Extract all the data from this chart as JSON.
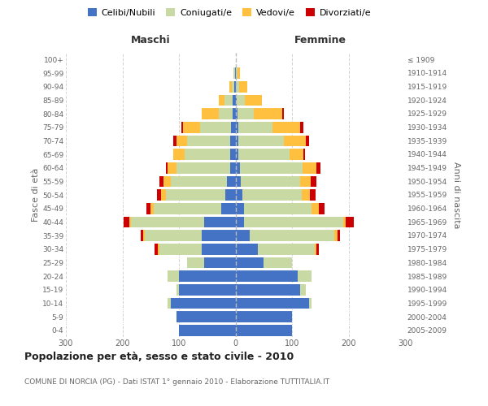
{
  "age_groups": [
    "0-4",
    "5-9",
    "10-14",
    "15-19",
    "20-24",
    "25-29",
    "30-34",
    "35-39",
    "40-44",
    "45-49",
    "50-54",
    "55-59",
    "60-64",
    "65-69",
    "70-74",
    "75-79",
    "80-84",
    "85-89",
    "90-94",
    "95-99",
    "100+"
  ],
  "birth_years": [
    "2005-2009",
    "2000-2004",
    "1995-1999",
    "1990-1994",
    "1985-1989",
    "1980-1984",
    "1975-1979",
    "1970-1974",
    "1965-1969",
    "1960-1964",
    "1955-1959",
    "1950-1954",
    "1945-1949",
    "1940-1944",
    "1935-1939",
    "1930-1934",
    "1925-1929",
    "1920-1924",
    "1915-1919",
    "1910-1914",
    "≤ 1909"
  ],
  "male": {
    "celibi": [
      100,
      105,
      115,
      100,
      100,
      55,
      60,
      60,
      55,
      25,
      18,
      15,
      10,
      10,
      10,
      8,
      5,
      5,
      2,
      1,
      0
    ],
    "coniugati": [
      0,
      0,
      5,
      5,
      20,
      30,
      75,
      100,
      130,
      120,
      105,
      100,
      95,
      80,
      75,
      55,
      25,
      15,
      4,
      2,
      0
    ],
    "vedovi": [
      0,
      0,
      0,
      0,
      0,
      0,
      3,
      3,
      3,
      5,
      8,
      12,
      15,
      20,
      20,
      30,
      30,
      10,
      5,
      1,
      0
    ],
    "divorziati": [
      0,
      0,
      0,
      0,
      0,
      0,
      5,
      5,
      10,
      8,
      8,
      8,
      3,
      0,
      5,
      2,
      0,
      0,
      0,
      0,
      0
    ]
  },
  "female": {
    "nubili": [
      100,
      100,
      130,
      115,
      110,
      50,
      40,
      25,
      15,
      15,
      12,
      10,
      8,
      5,
      5,
      5,
      3,
      2,
      1,
      1,
      0
    ],
    "coniugate": [
      0,
      0,
      5,
      10,
      25,
      50,
      100,
      150,
      175,
      120,
      105,
      105,
      110,
      90,
      80,
      60,
      30,
      15,
      5,
      2,
      0
    ],
    "vedove": [
      0,
      0,
      0,
      0,
      0,
      0,
      3,
      5,
      5,
      12,
      15,
      18,
      25,
      25,
      40,
      50,
      50,
      30,
      15,
      5,
      1
    ],
    "divorziate": [
      0,
      0,
      0,
      0,
      0,
      0,
      5,
      5,
      15,
      10,
      10,
      10,
      8,
      3,
      5,
      5,
      2,
      0,
      0,
      0,
      0
    ]
  },
  "colors": {
    "celibi": "#4472c4",
    "coniugati": "#c8d9a4",
    "vedovi": "#ffc040",
    "divorziati": "#cc0000"
  },
  "xlim": 300,
  "title": "Popolazione per età, sesso e stato civile - 2010",
  "subtitle": "COMUNE DI NORCIA (PG) - Dati ISTAT 1° gennaio 2010 - Elaborazione TUTTITALIA.IT",
  "ylabel_left": "Fasce di età",
  "ylabel_right": "Anni di nascita",
  "label_maschi": "Maschi",
  "label_femmine": "Femmine",
  "legend_labels": [
    "Celibi/Nubili",
    "Coniugati/e",
    "Vedovi/e",
    "Divorziati/e"
  ],
  "background_color": "#ffffff",
  "grid_color": "#cccccc"
}
